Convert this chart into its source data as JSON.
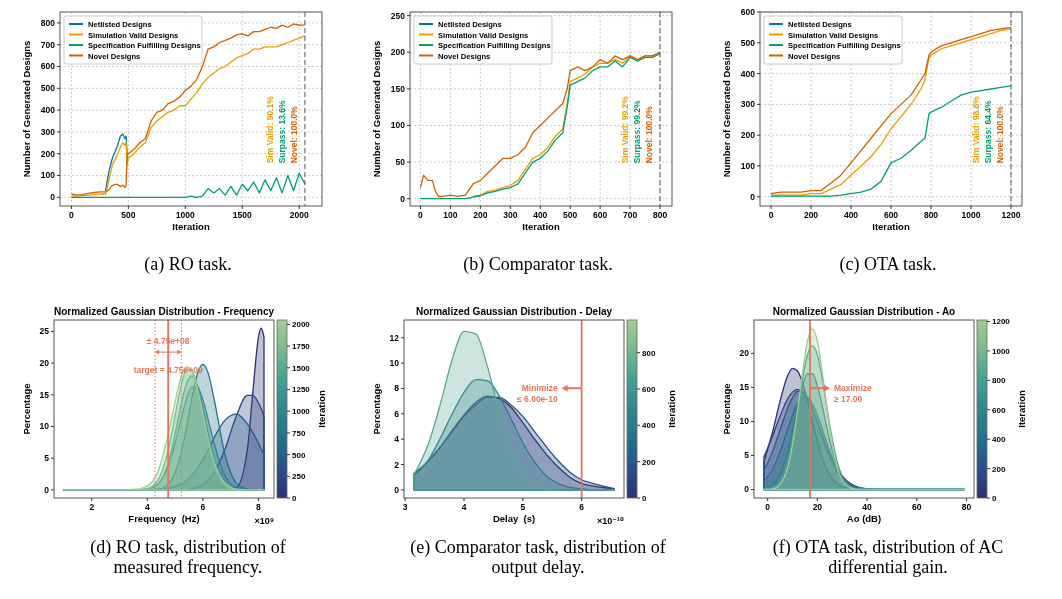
{
  "chart_data": [
    {
      "type": "line",
      "xlabel": "Iteration",
      "ylabel": "Number of Generated Designs",
      "x": [
        0,
        50,
        100,
        150,
        200,
        250,
        300,
        330,
        360,
        400,
        430,
        450,
        470,
        480,
        490,
        500,
        550,
        600,
        650,
        700,
        750,
        800,
        850,
        900,
        950,
        1000,
        1050,
        1100,
        1150,
        1200,
        1250,
        1300,
        1350,
        1400,
        1450,
        1500,
        1550,
        1600,
        1650,
        1700,
        1750,
        1800,
        1850,
        1900,
        1950,
        2000,
        2050
      ],
      "xlim": [
        -100,
        2200
      ],
      "ylim": [
        -40,
        850
      ],
      "xticks": [
        0,
        500,
        1000,
        1500,
        2000
      ],
      "yticks": [
        0,
        100,
        200,
        300,
        400,
        500,
        600,
        700,
        800
      ],
      "grid": true,
      "legend": "top left",
      "series": [
        {
          "name": "Netlisted Designs",
          "color": "#0072b2",
          "values": [
            null,
            null,
            null,
            null,
            null,
            null,
            30,
            120,
            180,
            230,
            280,
            290,
            270,
            280,
            190,
            null,
            null,
            null,
            null,
            null,
            null,
            null,
            null,
            null,
            null,
            null,
            null,
            null,
            null,
            null,
            null,
            null,
            null,
            null,
            null,
            null,
            null,
            null,
            null,
            null,
            null,
            null,
            null,
            null,
            null,
            null,
            null
          ]
        },
        {
          "name": "Simulation Valid Designs",
          "color": "#e69f00",
          "values": [
            5,
            5,
            8,
            10,
            12,
            15,
            15,
            80,
            150,
            190,
            230,
            250,
            240,
            250,
            150,
            180,
            200,
            230,
            250,
            320,
            350,
            370,
            390,
            400,
            420,
            420,
            450,
            480,
            520,
            550,
            570,
            590,
            600,
            620,
            640,
            650,
            660,
            680,
            680,
            690,
            690,
            690,
            700,
            710,
            720,
            730,
            740
          ]
        },
        {
          "name": "Specification Fulfilling Designs",
          "color": "#009e73",
          "values": [
            0,
            0,
            0,
            0,
            0,
            0,
            0,
            0,
            0,
            0,
            0,
            0,
            0,
            0,
            0,
            0,
            0,
            0,
            0,
            0,
            0,
            0,
            0,
            0,
            0,
            0,
            5,
            0,
            5,
            40,
            20,
            40,
            10,
            50,
            10,
            60,
            30,
            70,
            20,
            80,
            30,
            90,
            20,
            100,
            30,
            110,
            60
          ]
        },
        {
          "name": "Novel Designs",
          "color": "#d55e00",
          "values": [
            15,
            10,
            12,
            18,
            22,
            25,
            25,
            35,
            55,
            60,
            50,
            55,
            45,
            55,
            190,
            200,
            220,
            250,
            270,
            350,
            390,
            400,
            430,
            440,
            460,
            490,
            510,
            540,
            600,
            680,
            690,
            710,
            720,
            730,
            745,
            750,
            740,
            760,
            760,
            770,
            780,
            775,
            790,
            780,
            795,
            790,
            790
          ]
        }
      ],
      "ref_lines": [
        {
          "axis": "x",
          "value": 2050,
          "color": "#555555",
          "line_style": "dashed"
        }
      ],
      "annotations": [
        "Sim Valid: 90.1%",
        "Surpass: 13.6%",
        "Novel: 100.0%",
        "(a) RO task."
      ]
    },
    {
      "type": "line",
      "xlabel": "Iteration",
      "ylabel": "Number of Generated Designs",
      "x": [
        0,
        10,
        25,
        40,
        50,
        60,
        75,
        100,
        125,
        150,
        175,
        200,
        225,
        250,
        275,
        300,
        325,
        350,
        375,
        400,
        425,
        450,
        475,
        490,
        500,
        525,
        550,
        575,
        600,
        625,
        650,
        675,
        700,
        725,
        750,
        775,
        800
      ],
      "xlim": [
        -35,
        840
      ],
      "ylim": [
        -10,
        255
      ],
      "xticks": [
        0,
        100,
        200,
        300,
        400,
        500,
        600,
        700,
        800
      ],
      "yticks": [
        0,
        50,
        100,
        150,
        200,
        250
      ],
      "grid": true,
      "legend": "top left",
      "series": [
        {
          "name": "Netlisted Designs",
          "color": "#0072b2",
          "values": [
            null,
            null,
            null,
            null,
            null,
            null,
            null,
            null,
            null,
            null,
            null,
            null,
            null,
            null,
            null,
            null,
            null,
            null,
            null,
            null,
            null,
            null,
            null,
            null,
            null,
            null,
            null,
            null,
            null,
            null,
            null,
            null,
            null,
            null,
            null,
            null,
            null
          ]
        },
        {
          "name": "Simulation Valid Designs",
          "color": "#e69f00",
          "values": [
            null,
            null,
            null,
            null,
            null,
            null,
            null,
            null,
            null,
            null,
            3,
            5,
            10,
            12,
            15,
            18,
            25,
            40,
            55,
            60,
            70,
            85,
            95,
            130,
            160,
            165,
            170,
            180,
            185,
            185,
            190,
            185,
            195,
            190,
            195,
            195,
            200
          ]
        },
        {
          "name": "Specification Fulfilling Designs",
          "color": "#009e73",
          "values": [
            0,
            0,
            0,
            0,
            0,
            0,
            0,
            0,
            0,
            0,
            2,
            4,
            8,
            10,
            13,
            15,
            20,
            35,
            50,
            55,
            65,
            80,
            90,
            125,
            155,
            160,
            165,
            175,
            180,
            180,
            188,
            180,
            193,
            188,
            193,
            193,
            198
          ]
        },
        {
          "name": "Novel Designs",
          "color": "#d55e00",
          "values": [
            15,
            32,
            25,
            25,
            10,
            3,
            3,
            5,
            3,
            5,
            20,
            25,
            35,
            45,
            55,
            55,
            60,
            70,
            90,
            100,
            110,
            120,
            130,
            150,
            175,
            180,
            175,
            180,
            190,
            185,
            195,
            190,
            195,
            190,
            195,
            195,
            200
          ]
        }
      ],
      "ref_lines": [
        {
          "axis": "x",
          "value": 800,
          "color": "#555555",
          "line_style": "dashed"
        }
      ],
      "annotations": [
        "Sim Valid: 99.2%",
        "Surpass: 99.2%",
        "Novel: 100.0%",
        "(b) Comparator task."
      ]
    },
    {
      "type": "line",
      "xlabel": "Iteration",
      "ylabel": "Number of Generated Designs",
      "x": [
        0,
        50,
        100,
        150,
        200,
        250,
        300,
        350,
        400,
        450,
        500,
        550,
        600,
        650,
        700,
        750,
        770,
        790,
        800,
        850,
        900,
        950,
        1000,
        1050,
        1100,
        1150,
        1200
      ],
      "xlim": [
        -55,
        1255
      ],
      "ylim": [
        -30,
        600
      ],
      "xticks": [
        0,
        200,
        400,
        600,
        800,
        1000,
        1200
      ],
      "yticks": [
        0,
        100,
        200,
        300,
        400,
        500,
        600
      ],
      "grid": true,
      "legend": "top left",
      "series": [
        {
          "name": "Netlisted Designs",
          "color": "#0072b2",
          "values": [
            null,
            null,
            null,
            null,
            null,
            null,
            null,
            null,
            null,
            null,
            null,
            null,
            null,
            null,
            null,
            null,
            null,
            null,
            null,
            null,
            null,
            null,
            null,
            null,
            null,
            null,
            null
          ]
        },
        {
          "name": "Simulation Valid Designs",
          "color": "#e69f00",
          "values": [
            5,
            5,
            5,
            5,
            10,
            10,
            25,
            40,
            70,
            100,
            130,
            170,
            220,
            260,
            300,
            350,
            380,
            450,
            460,
            480,
            490,
            500,
            510,
            520,
            530,
            540,
            545
          ]
        },
        {
          "name": "Specification Fulfilling Designs",
          "color": "#009e73",
          "values": [
            2,
            2,
            2,
            2,
            2,
            2,
            2,
            5,
            10,
            15,
            25,
            50,
            110,
            125,
            150,
            180,
            190,
            270,
            275,
            290,
            310,
            330,
            340,
            345,
            350,
            355,
            360
          ]
        },
        {
          "name": "Novel Designs",
          "color": "#d55e00",
          "values": [
            10,
            15,
            15,
            15,
            20,
            20,
            45,
            70,
            110,
            150,
            190,
            230,
            270,
            300,
            330,
            380,
            400,
            460,
            470,
            490,
            500,
            510,
            520,
            530,
            540,
            545,
            550
          ]
        }
      ],
      "ref_lines": [
        {
          "axis": "x",
          "value": 1200,
          "color": "#555555",
          "line_style": "dashed"
        }
      ],
      "annotations": [
        "Sim Valid: 98.8%",
        "Surpass: 64.4%",
        "Novel: 100.0%",
        "(c) OTA task."
      ]
    },
    {
      "type": "area",
      "title": "Normalized Gaussian Distribution - Frequency",
      "xlabel": "Frequency  (Hz)",
      "ylabel": "Percentage",
      "clabel": "Iteration",
      "clim": [
        0,
        2050
      ],
      "cticks": [
        0,
        250,
        500,
        750,
        1000,
        1250,
        1500,
        1750,
        2000
      ],
      "x": [
        1,
        3,
        3.6,
        4,
        4.4,
        4.8,
        5,
        5.2,
        5.4,
        5.6,
        5.8,
        6,
        6.2,
        6.4,
        6.8,
        7.2,
        7.6,
        7.8,
        8,
        8.1,
        8.2
      ],
      "xlim": [
        0.64,
        8.56
      ],
      "ylim": [
        -1.28,
        26.8
      ],
      "xticks": [
        2,
        4,
        6,
        8
      ],
      "yticks": [
        0,
        5,
        10,
        15,
        20,
        25
      ],
      "series": [
        {
          "color": "#2c3172",
          "values": [
            0,
            0,
            0,
            0,
            0,
            0,
            0,
            0,
            0,
            0,
            0,
            0,
            0,
            0,
            0,
            0.3,
            6.3,
            15.5,
            24.1,
            25.5,
            24.1
          ]
        },
        {
          "color": "#2b4384",
          "values": [
            0,
            0,
            0,
            0,
            0,
            0,
            0,
            0,
            0,
            0.2,
            0.4,
            0.8,
            1.5,
            2.7,
            6.5,
            11.6,
            14.9,
            14.9,
            13.7,
            12.8,
            11.6
          ]
        },
        {
          "color": "#27598a",
          "values": [
            0,
            0,
            0,
            0,
            0.1,
            0.3,
            0.5,
            0.9,
            1.4,
            2.3,
            3.4,
            4.8,
            6.4,
            8.2,
            11,
            12,
            10.4,
            9,
            7.3,
            6.4,
            5.6
          ]
        },
        {
          "color": "#25708d",
          "values": [
            0,
            0,
            0,
            0,
            0.1,
            1.1,
            2.7,
            5.5,
            9.6,
            14.4,
            18.3,
            19.8,
            18.3,
            14.4,
            5.5,
            1.1,
            0.1,
            0,
            0,
            0,
            0
          ]
        },
        {
          "color": "#2e868f",
          "values": [
            0,
            0,
            0,
            0.1,
            1,
            4.3,
            7.4,
            10.9,
            14.2,
            16.2,
            16.2,
            14.2,
            10.9,
            7.4,
            2.2,
            0.4,
            0,
            0,
            0,
            0,
            0
          ]
        },
        {
          "color": "#45a092",
          "values": [
            0,
            0,
            0,
            0.1,
            1,
            5,
            8.8,
            13.1,
            16.6,
            18,
            16.6,
            13.1,
            8.8,
            5,
            1,
            0.1,
            0,
            0,
            0,
            0,
            0
          ]
        },
        {
          "color": "#6cb592",
          "values": [
            0,
            0,
            0,
            0.2,
            1.7,
            7.2,
            11.7,
            16.1,
            18.9,
            18.9,
            16.1,
            11.7,
            7.2,
            3.8,
            0.7,
            0,
            0,
            0,
            0,
            0,
            0
          ]
        },
        {
          "color": "#a1cc92",
          "values": [
            0,
            0,
            0.1,
            0.6,
            3.1,
            9.7,
            13.9,
            17.6,
            19.4,
            18.8,
            15.9,
            11.8,
            7.7,
            4.4,
            1,
            0.1,
            0,
            0,
            0,
            0,
            0
          ]
        }
      ],
      "ref_lines": [
        {
          "axis": "x",
          "value": 4.75,
          "label": "target = 4.75e+09",
          "color": "#e8735a"
        },
        {
          "axis": "x",
          "value": 4.275,
          "color": "#e8735a",
          "line_style": "dotted"
        },
        {
          "axis": "x",
          "value": 5.225,
          "color": "#e8735a",
          "line_style": "dotted"
        }
      ],
      "annotations": [
        {
          "text": "± 4.75e+08",
          "x": 4.75,
          "y": 23
        },
        "×10⁹",
        "(d) RO task, distribution of measured frequency."
      ]
    },
    {
      "type": "area",
      "title": "Normalized Gaussian Distribution - Delay",
      "xlabel": "Delay  (s)",
      "ylabel": "Percentage",
      "clabel": "Iteration",
      "clim": [
        0,
        980
      ],
      "cticks": [
        0,
        200,
        400,
        600,
        800
      ],
      "x": [
        3.15,
        3.4,
        3.6,
        3.8,
        4,
        4.2,
        4.4,
        4.6,
        4.8,
        5,
        5.2,
        5.4,
        5.6,
        5.8,
        6,
        6.2,
        6.55
      ],
      "xlim": [
        2.98,
        6.72
      ],
      "ylim": [
        -0.64,
        13.4
      ],
      "xticks": [
        3,
        4,
        5,
        6
      ],
      "yticks": [
        0,
        2,
        4,
        6,
        8,
        10,
        12
      ],
      "series": [
        {
          "color": "#2c3172",
          "values": [
            1.2,
            2.3,
            3.4,
            4.7,
            5.9,
            6.9,
            7.4,
            7.2,
            6.5,
            5.3,
            4,
            2.8,
            1.8,
            1,
            0.5,
            0.3,
            0.1
          ]
        },
        {
          "color": "#28508a",
          "values": [
            1.3,
            2.3,
            3.4,
            4.6,
            5.8,
            6.7,
            7.3,
            7.3,
            6.7,
            5.8,
            4.6,
            3.4,
            2.3,
            1.4,
            0.8,
            0.5,
            0.1
          ]
        },
        {
          "color": "#2e7d8e",
          "values": [
            1.1,
            2.4,
            4.1,
            6,
            7.7,
            8.7,
            8.6,
            7.4,
            5.6,
            3.7,
            2.2,
            1.1,
            0.5,
            0.2,
            0.1,
            0,
            0
          ]
        },
        {
          "color": "#5aa893",
          "values": [
            1.2,
            3.7,
            6.8,
            10.3,
            12.5,
            12.3,
            9.7,
            6.1,
            3.2,
            1.3,
            0.4,
            0.1,
            0,
            0,
            0,
            0,
            0
          ]
        }
      ],
      "ref_lines": [
        {
          "axis": "x",
          "value": 6,
          "color": "#e8735a",
          "label": "Minimize\n≤ 6.00e-10"
        }
      ],
      "annotations": [
        "×10⁻¹⁰",
        "(e) Comparator task, distribution of output delay."
      ]
    },
    {
      "type": "area",
      "title": "Normalized Gaussian Distribution - Ao",
      "xlabel": "Ao (dB)",
      "ylabel": "Percentage",
      "clabel": "Iteration",
      "clim": [
        0,
        1210
      ],
      "cticks": [
        0,
        200,
        400,
        600,
        800,
        1000,
        1200
      ],
      "x": [
        -1.5,
        2,
        5,
        8,
        10,
        12,
        14,
        16,
        18,
        20,
        22,
        25,
        28,
        32,
        36,
        40,
        50,
        79
      ],
      "xlim": [
        -5.5,
        83
      ],
      "ylim": [
        -1.25,
        24.9
      ],
      "xticks": [
        0,
        20,
        40,
        60,
        80
      ],
      "yticks": [
        0,
        5,
        10,
        15,
        20
      ],
      "series": [
        {
          "color": "#2c3172",
          "values": [
            4.1,
            8.5,
            13,
            16.7,
            17.8,
            17.4,
            15.7,
            13,
            10,
            7.1,
            4.6,
            2.1,
            0.8,
            0.2,
            0,
            0,
            0,
            0
          ]
        },
        {
          "color": "#2b4384",
          "values": [
            4.8,
            7.9,
            10.8,
            13.3,
            14.3,
            14.7,
            14.3,
            13.3,
            11.8,
            9.9,
            7.9,
            5.2,
            3,
            1.2,
            0.4,
            0.1,
            0,
            0
          ]
        },
        {
          "color": "#27598a",
          "values": [
            2.8,
            5.6,
            8.8,
            11.9,
            13.5,
            14.4,
            14.4,
            13.5,
            11.9,
            9.9,
            7.7,
            4.7,
            2.5,
            0.9,
            0.2,
            0,
            0,
            0
          ]
        },
        {
          "color": "#25708d",
          "values": [
            1.2,
            3,
            5.6,
            8.8,
            10.9,
            12.6,
            13.5,
            13.5,
            12.6,
            10.9,
            8.8,
            5.6,
            3,
            1,
            0.3,
            0.1,
            0,
            0
          ]
        },
        {
          "color": "#2e868f",
          "values": [
            0.1,
            0.8,
            2.3,
            5.6,
            8.7,
            12.2,
            15.2,
            17,
            17,
            15.2,
            12.2,
            7.1,
            3.2,
            0.8,
            0.1,
            0,
            0,
            0
          ]
        },
        {
          "color": "#45a092",
          "values": [
            0,
            0.3,
            1.3,
            4,
            7.4,
            11.6,
            16.2,
            19.8,
            21.1,
            19.8,
            16.2,
            9.4,
            4,
            0.8,
            0.1,
            0,
            0,
            0
          ]
        },
        {
          "color": "#a1cc92",
          "values": [
            0,
            0.1,
            0.8,
            3.2,
            6.6,
            11.5,
            17.1,
            21.8,
            23.6,
            21.8,
            17.1,
            8.9,
            3.2,
            0.5,
            0,
            0,
            0,
            0
          ]
        }
      ],
      "ref_lines": [
        {
          "axis": "x",
          "value": 17,
          "color": "#e8735a",
          "label": "Maximize\n≥ 17.00"
        }
      ],
      "annotations": [
        "(f) OTA task, distribution of AC differential gain."
      ]
    }
  ]
}
